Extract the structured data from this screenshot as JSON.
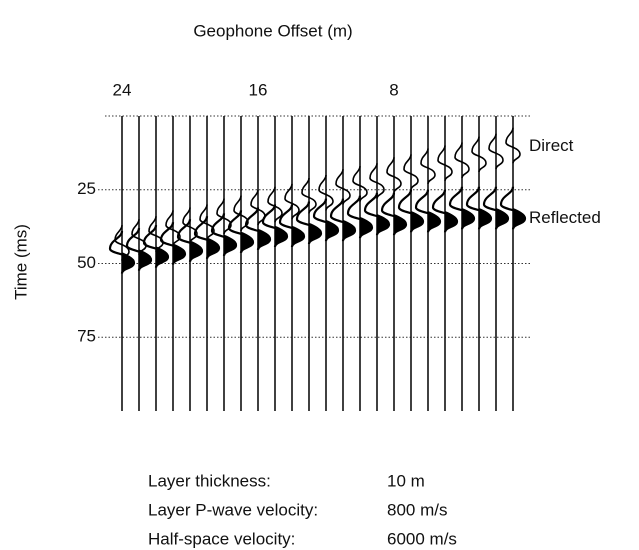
{
  "chart_data": {
    "type": "seismogram",
    "title": "Geophone Offset (m)",
    "y_label": "Time (ms)",
    "x": [
      24,
      23,
      22,
      21,
      20,
      19,
      18,
      17,
      16,
      15,
      14,
      13,
      12,
      11,
      10,
      9,
      8,
      7,
      6,
      5,
      4,
      3,
      2,
      1
    ],
    "xlim": [
      25,
      0
    ],
    "xticks": [
      24,
      16,
      8
    ],
    "ylim": [
      0,
      100
    ],
    "yticks": [
      25,
      50,
      75
    ],
    "grid": true,
    "series": [
      {
        "name": "Direct",
        "color": "#000000",
        "values": [
          42,
          40,
          39,
          37,
          36,
          35,
          33,
          32,
          30,
          29,
          28,
          26,
          25,
          23,
          22,
          21,
          19,
          18,
          16,
          15,
          14,
          12,
          11,
          9
        ]
      },
      {
        "name": "Reflected",
        "color": "#000000",
        "values": [
          45,
          44,
          43,
          42,
          41,
          40,
          39,
          38,
          37,
          36,
          36,
          35,
          34,
          34,
          33,
          32,
          32,
          31,
          31,
          31,
          30,
          30,
          30,
          30
        ]
      }
    ],
    "parameters": [
      {
        "label": "Layer thickness:",
        "value": "10 m"
      },
      {
        "label": "Layer P-wave velocity:",
        "value": "800 m/s"
      },
      {
        "label": "Half-space velocity:",
        "value": "6000 m/s"
      }
    ]
  }
}
